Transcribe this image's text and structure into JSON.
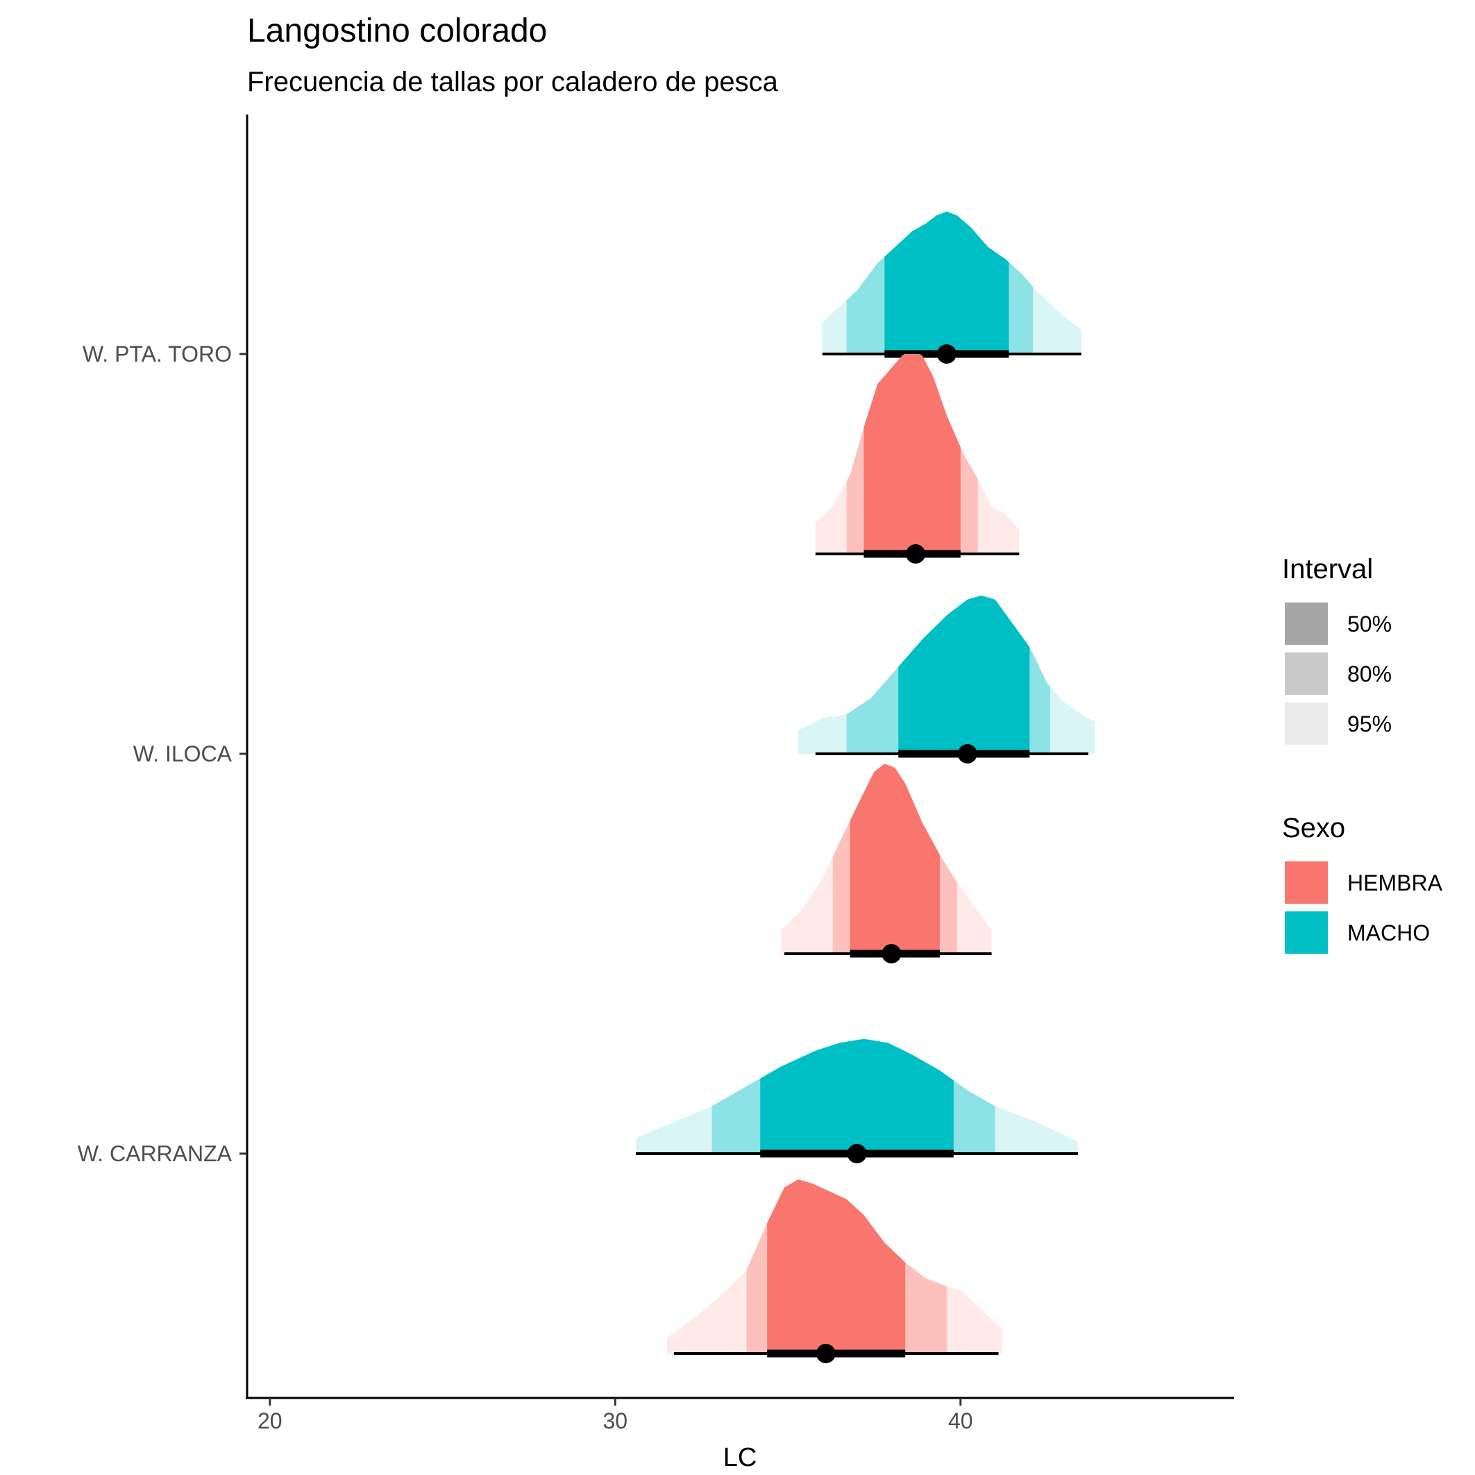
{
  "chart_data": {
    "type": "halfeye",
    "title": "Langostino colorado",
    "subtitle": "Frecuencia de tallas por caladero de pesca",
    "xlabel": "LC",
    "ylabel": "",
    "xlim": [
      19.3,
      47.8
    ],
    "x_ticks": [
      "20",
      "30",
      "40"
    ],
    "x_tick_values": [
      20,
      30,
      40
    ],
    "categories": [
      "W. PTA. TORO",
      "W. ILOCA",
      "W. CARRANZA"
    ],
    "colors": {
      "HEMBRA": "#F8766D",
      "MACHO": "#00BFC4"
    },
    "legend_interval": {
      "title": "Interval",
      "labels": [
        "50%",
        "80%",
        "95%"
      ]
    },
    "legend_sexo": {
      "title": "Sexo",
      "labels": [
        "HEMBRA",
        "MACHO"
      ]
    },
    "legend_position": "right",
    "series": [
      {
        "name": "MACHO",
        "category": "W. PTA. TORO",
        "median": 39.6,
        "interval_50": [
          37.8,
          41.4
        ],
        "interval_80": [
          36.7,
          42.1
        ],
        "interval_95": [
          36.0,
          43.5
        ],
        "density_range": [
          36.0,
          43.5
        ],
        "density": [
          [
            36.0,
            0.08
          ],
          [
            36.5,
            0.12
          ],
          [
            37.0,
            0.16
          ],
          [
            37.6,
            0.23
          ],
          [
            38.1,
            0.27
          ],
          [
            38.6,
            0.31
          ],
          [
            39.0,
            0.33
          ],
          [
            39.3,
            0.35
          ],
          [
            39.6,
            0.36
          ],
          [
            39.9,
            0.35
          ],
          [
            40.3,
            0.32
          ],
          [
            40.8,
            0.27
          ],
          [
            41.3,
            0.24
          ],
          [
            41.8,
            0.2
          ],
          [
            42.2,
            0.16
          ],
          [
            42.8,
            0.11
          ],
          [
            43.5,
            0.06
          ]
        ]
      },
      {
        "name": "HEMBRA",
        "category": "W. PTA. TORO",
        "median": 38.7,
        "interval_50": [
          37.2,
          40.0
        ],
        "interval_80": [
          36.7,
          40.5
        ],
        "interval_95": [
          35.8,
          41.7
        ],
        "density_range": [
          35.8,
          41.7
        ],
        "density": [
          [
            35.8,
            0.08
          ],
          [
            36.3,
            0.12
          ],
          [
            36.8,
            0.2
          ],
          [
            37.2,
            0.32
          ],
          [
            37.6,
            0.43
          ],
          [
            38.0,
            0.47
          ],
          [
            38.3,
            0.5
          ],
          [
            38.6,
            0.52
          ],
          [
            38.9,
            0.5
          ],
          [
            39.2,
            0.45
          ],
          [
            39.6,
            0.35
          ],
          [
            40.1,
            0.25
          ],
          [
            40.5,
            0.19
          ],
          [
            40.9,
            0.12
          ],
          [
            41.3,
            0.1
          ],
          [
            41.7,
            0.06
          ]
        ]
      },
      {
        "name": "MACHO",
        "category": "W. ILOCA",
        "median": 40.2,
        "interval_50": [
          38.2,
          42.0
        ],
        "interval_80": [
          36.7,
          42.6
        ],
        "interval_95": [
          35.8,
          43.7
        ],
        "density_range": [
          35.3,
          43.9
        ],
        "density": [
          [
            35.3,
            0.06
          ],
          [
            36.0,
            0.09
          ],
          [
            36.7,
            0.1
          ],
          [
            37.4,
            0.14
          ],
          [
            38.2,
            0.22
          ],
          [
            38.9,
            0.29
          ],
          [
            39.6,
            0.35
          ],
          [
            40.2,
            0.39
          ],
          [
            40.6,
            0.4
          ],
          [
            41.0,
            0.39
          ],
          [
            41.5,
            0.33
          ],
          [
            42.0,
            0.27
          ],
          [
            42.5,
            0.18
          ],
          [
            43.0,
            0.13
          ],
          [
            43.5,
            0.1
          ],
          [
            43.9,
            0.08
          ]
        ]
      },
      {
        "name": "HEMBRA",
        "category": "W. ILOCA",
        "median": 38.0,
        "interval_50": [
          36.8,
          39.4
        ],
        "interval_80": [
          36.3,
          39.9
        ],
        "interval_95": [
          34.9,
          40.9
        ],
        "density_range": [
          34.8,
          40.9
        ],
        "density": [
          [
            34.8,
            0.06
          ],
          [
            35.4,
            0.11
          ],
          [
            36.0,
            0.19
          ],
          [
            36.6,
            0.3
          ],
          [
            37.1,
            0.39
          ],
          [
            37.5,
            0.46
          ],
          [
            37.8,
            0.48
          ],
          [
            38.1,
            0.47
          ],
          [
            38.4,
            0.43
          ],
          [
            38.9,
            0.33
          ],
          [
            39.4,
            0.25
          ],
          [
            39.9,
            0.18
          ],
          [
            40.4,
            0.12
          ],
          [
            40.9,
            0.06
          ]
        ]
      },
      {
        "name": "MACHO",
        "category": "W. CARRANZA",
        "median": 37.0,
        "interval_50": [
          34.2,
          39.8
        ],
        "interval_80": [
          32.8,
          41.0
        ],
        "interval_95": [
          30.6,
          43.4
        ],
        "density_range": [
          30.6,
          43.4
        ],
        "density": [
          [
            30.6,
            0.04
          ],
          [
            31.7,
            0.08
          ],
          [
            32.8,
            0.12
          ],
          [
            33.8,
            0.17
          ],
          [
            34.8,
            0.22
          ],
          [
            35.8,
            0.26
          ],
          [
            36.5,
            0.28
          ],
          [
            37.2,
            0.29
          ],
          [
            37.9,
            0.28
          ],
          [
            38.6,
            0.25
          ],
          [
            39.4,
            0.21
          ],
          [
            40.2,
            0.16
          ],
          [
            41.0,
            0.12
          ],
          [
            42.2,
            0.08
          ],
          [
            43.4,
            0.03
          ]
        ]
      },
      {
        "name": "HEMBRA",
        "category": "W. CARRANZA",
        "median": 36.1,
        "interval_50": [
          34.4,
          38.4
        ],
        "interval_80": [
          33.8,
          39.6
        ],
        "interval_95": [
          31.7,
          41.1
        ],
        "density_range": [
          31.5,
          41.2
        ],
        "density": [
          [
            31.5,
            0.04
          ],
          [
            32.3,
            0.09
          ],
          [
            33.1,
            0.15
          ],
          [
            33.8,
            0.21
          ],
          [
            34.4,
            0.33
          ],
          [
            34.9,
            0.42
          ],
          [
            35.3,
            0.44
          ],
          [
            35.7,
            0.43
          ],
          [
            36.2,
            0.41
          ],
          [
            36.7,
            0.39
          ],
          [
            37.2,
            0.35
          ],
          [
            37.8,
            0.28
          ],
          [
            38.4,
            0.23
          ],
          [
            39.0,
            0.19
          ],
          [
            39.6,
            0.17
          ],
          [
            40.0,
            0.16
          ],
          [
            40.5,
            0.12
          ],
          [
            41.2,
            0.06
          ]
        ]
      }
    ]
  }
}
